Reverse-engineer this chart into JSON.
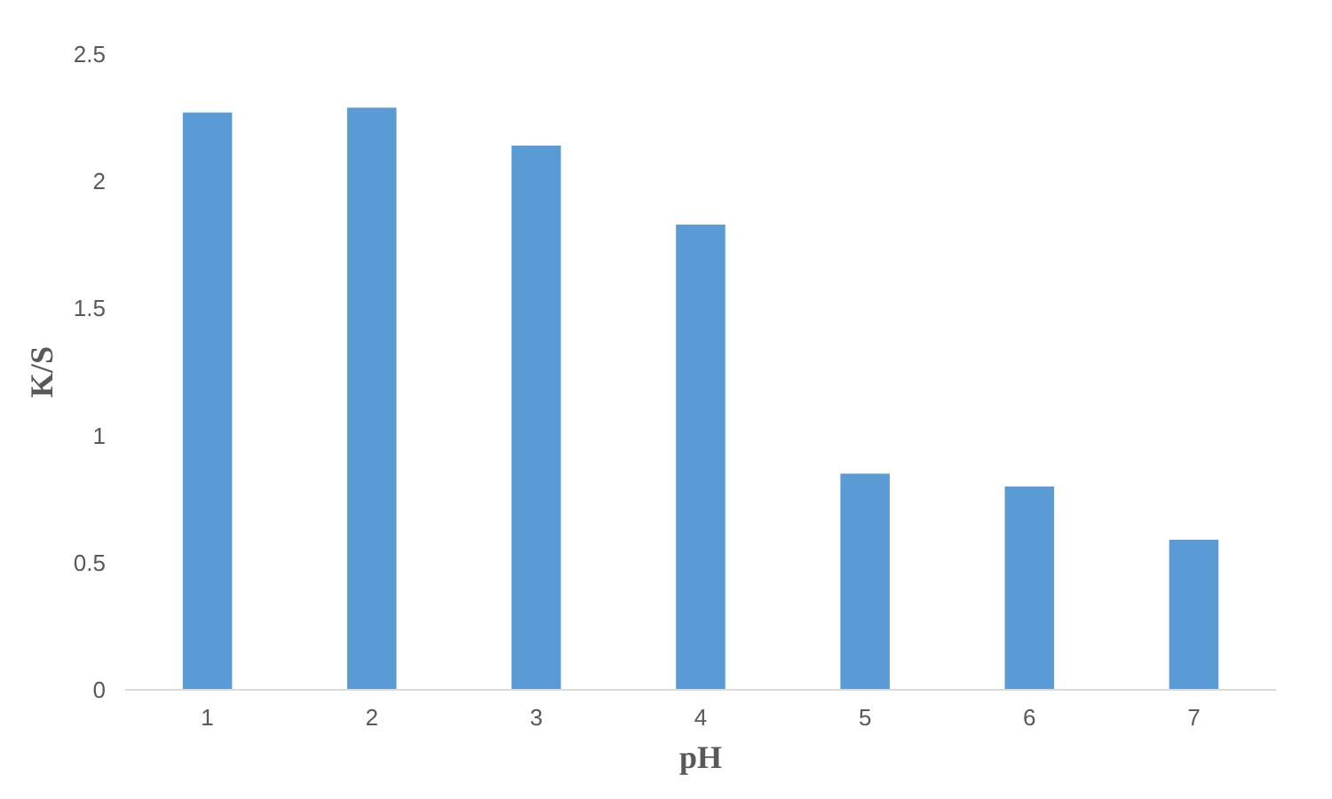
{
  "chart_data": {
    "type": "bar",
    "xlabel": "pH",
    "ylabel": "K/S",
    "categories": [
      "1",
      "2",
      "3",
      "4",
      "5",
      "6",
      "7"
    ],
    "values": [
      2.27,
      2.29,
      2.14,
      1.83,
      0.85,
      0.8,
      0.59
    ],
    "color": "#5b9bd5",
    "ylim": [
      0,
      2.5
    ],
    "yticks": [
      0,
      0.5,
      1,
      1.5,
      2,
      2.5
    ],
    "grid": false
  }
}
